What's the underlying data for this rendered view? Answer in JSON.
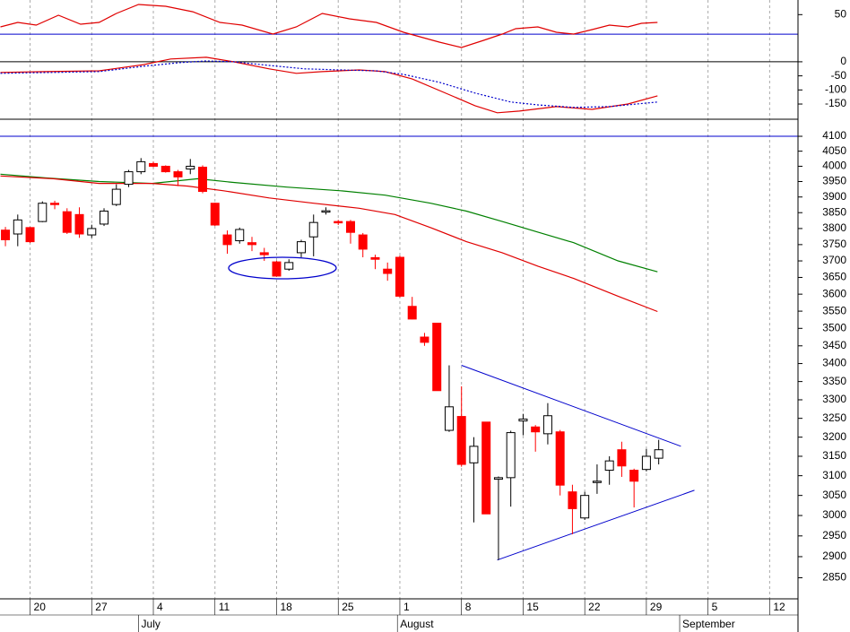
{
  "chart_data": [
    {
      "type": "line",
      "xlim": [
        -0.44,
        64.3
      ],
      "ylim": [
        8,
        65
      ],
      "yticks": [
        50
      ],
      "reference_line": {
        "value": 30,
        "color": "#0000cc"
      },
      "series": [
        {
          "color": "#e00000",
          "x": [
            -0.4,
            1.0,
            2.5,
            4.3,
            6.1,
            7.6,
            9.0,
            10.8,
            13.0,
            15.2,
            17.4,
            19.2,
            21.7,
            23.6,
            25.7,
            27.9,
            30.1,
            32.3,
            35.2,
            37.0,
            38.8,
            40.3,
            41.4,
            43.2,
            44.7,
            46.1,
            47.6,
            49.0,
            50.5,
            51.6,
            52.9
          ],
          "values": [
            37.4,
            42.0,
            39.3,
            49.4,
            40.2,
            42.0,
            51.2,
            60.4,
            58.6,
            53.0,
            42.0,
            39.3,
            30.1,
            37.4,
            51.2,
            45.7,
            42.0,
            31.9,
            21.8,
            16.3,
            23.6,
            30.1,
            35.6,
            37.4,
            31.9,
            30.1,
            34.7,
            39.3,
            37.4,
            41.1,
            42.0
          ]
        }
      ]
    },
    {
      "type": "line",
      "xlim": [
        -0.44,
        64.3
      ],
      "ylim": [
        -204,
        22
      ],
      "yticks": [
        0,
        -50,
        -100,
        -150
      ],
      "reference_line": {
        "value": 0,
        "color": "#000000"
      },
      "series": [
        {
          "color": "#e00000",
          "x": [
            -0.4,
            3.2,
            7.6,
            11.2,
            13.4,
            16.3,
            18.5,
            21.4,
            23.6,
            25.7,
            28.7,
            30.8,
            33.0,
            35.9,
            38.1,
            39.9,
            41.7,
            44.7,
            47.6,
            50.5,
            52.9
          ],
          "values": [
            -38,
            -35,
            -32,
            -10,
            10,
            16,
            0,
            -25,
            -41,
            -35,
            -29,
            -35,
            -61,
            -115,
            -156,
            -181,
            -175,
            -159,
            -169,
            -150,
            -121
          ]
        },
        {
          "color": "#0000cc",
          "style": "dotted",
          "x": [
            -0.4,
            3.9,
            7.6,
            11.2,
            14.1,
            16.3,
            18.5,
            21.4,
            24.3,
            27.2,
            30.1,
            32.3,
            35.2,
            38.1,
            41.0,
            43.2,
            46.1,
            49.0,
            52.9
          ],
          "values": [
            -41,
            -38,
            -35,
            -16,
            -3,
            3,
            0,
            -13,
            -25,
            -29,
            -32,
            -45,
            -73,
            -111,
            -143,
            -153,
            -162,
            -159,
            -143
          ]
        }
      ]
    },
    {
      "type": "candlestick",
      "xlim": [
        -0.44,
        64.3
      ],
      "ylim": [
        2801,
        4158
      ],
      "log_scale": true,
      "yticks": [
        4100,
        4050,
        4000,
        3950,
        3900,
        3850,
        3800,
        3750,
        3700,
        3650,
        3600,
        3550,
        3500,
        3450,
        3400,
        3350,
        3300,
        3250,
        3200,
        3150,
        3100,
        3050,
        3000,
        2950,
        2900,
        2850
      ],
      "reference_line": {
        "value": 4100,
        "color": "#0000cc"
      },
      "up_color": "#ffffff",
      "down_color": "#ff0000",
      "open": [
        3795,
        3783,
        3803,
        3822,
        3880,
        3853,
        3844,
        3780,
        3814,
        3876,
        3941,
        3982,
        4009,
        4000,
        3982,
        3991,
        3997,
        3880,
        3780,
        3762,
        3756,
        3725,
        3697,
        3675,
        3725,
        3774,
        3853,
        3822,
        3822,
        3780,
        3710,
        3675,
        3711,
        3564,
        3475,
        3515,
        3218,
        3255,
        3133,
        3240,
        3091,
        3095,
        3243,
        3227,
        3209,
        3214,
        3059,
        2994,
        3083,
        3114,
        3167,
        3114,
        3116,
        3145
      ],
      "high": [
        3805,
        3844,
        3805,
        3886,
        3888,
        3864,
        3867,
        3812,
        3864,
        3941,
        3988,
        4027,
        4015,
        4003,
        3988,
        4024,
        4003,
        3882,
        3794,
        3803,
        3774,
        3740,
        3700,
        3705,
        3765,
        3844,
        3867,
        3827,
        3827,
        3786,
        3719,
        3695,
        3716,
        3592,
        3487,
        3515,
        3395,
        3337,
        3200,
        3240,
        3098,
        3217,
        3262,
        3232,
        3291,
        3219,
        3077,
        3059,
        3129,
        3150,
        3188,
        3118,
        3169,
        3193
      ],
      "low": [
        3745,
        3745,
        3755,
        3820,
        3861,
        3783,
        3771,
        3771,
        3808,
        3871,
        3932,
        3974,
        3997,
        3979,
        3935,
        3974,
        3912,
        3808,
        3722,
        3753,
        3730,
        3700,
        3652,
        3670,
        3711,
        3714,
        3844,
        3811,
        3753,
        3711,
        3675,
        3640,
        3590,
        3526,
        3450,
        3325,
        3214,
        3123,
        2983,
        3004,
        2892,
        3022,
        3205,
        3162,
        3181,
        3050,
        2954,
        2989,
        3054,
        3077,
        3097,
        3020,
        3111,
        3129
      ],
      "close": [
        3765,
        3827,
        3759,
        3880,
        3876,
        3788,
        3783,
        3800,
        3855,
        3925,
        3982,
        4015,
        4000,
        3982,
        3965,
        4000,
        3918,
        3811,
        3750,
        3797,
        3750,
        3719,
        3654,
        3695,
        3759,
        3819,
        3856,
        3818,
        3788,
        3736,
        3705,
        3662,
        3594,
        3527,
        3460,
        3325,
        3281,
        3129,
        3176,
        3004,
        3095,
        3212,
        3248,
        3214,
        3257,
        3076,
        3017,
        3050,
        3086,
        3138,
        3125,
        3086,
        3150,
        3167
      ],
      "series": [
        {
          "color": "#008000",
          "x": [
            -0.4,
            3.2,
            7.6,
            11.9,
            15.6,
            18.5,
            22.8,
            27.2,
            30.8,
            34.5,
            37.4,
            40.3,
            43.2,
            46.1,
            49.7,
            52.9
          ],
          "values": [
            3974,
            3962,
            3950,
            3944,
            3959,
            3947,
            3932,
            3920,
            3906,
            3880,
            3855,
            3822,
            3789,
            3756,
            3700,
            3667
          ]
        },
        {
          "color": "#e00000",
          "x": [
            -0.4,
            3.9,
            7.6,
            11.9,
            14.8,
            17.7,
            21.4,
            25.0,
            28.7,
            31.6,
            34.5,
            37.4,
            40.3,
            43.2,
            46.1,
            49.7,
            52.9
          ],
          "values": [
            3968,
            3959,
            3944,
            3944,
            3935,
            3920,
            3897,
            3880,
            3864,
            3844,
            3803,
            3759,
            3725,
            3684,
            3647,
            3594,
            3549
          ]
        }
      ],
      "trendlines": [
        {
          "color": "#0000cc",
          "x": [
            37.0,
            54.8
          ],
          "values": [
            3395,
            3176
          ]
        },
        {
          "color": "#0000cc",
          "x": [
            39.9,
            55.9
          ],
          "values": [
            2892,
            3063
          ]
        }
      ],
      "xticks": [
        {
          "value": 2,
          "label": "20"
        },
        {
          "value": 7,
          "label": "27"
        },
        {
          "value": 12,
          "label": "4"
        },
        {
          "value": 17,
          "label": "11"
        },
        {
          "value": 22,
          "label": "18"
        },
        {
          "value": 27,
          "label": "25"
        },
        {
          "value": 32,
          "label": "1"
        },
        {
          "value": 37,
          "label": "8"
        },
        {
          "value": 42,
          "label": "15"
        },
        {
          "value": 47,
          "label": "22"
        },
        {
          "value": 52,
          "label": "29"
        },
        {
          "value": 57,
          "label": "5"
        },
        {
          "value": 62,
          "label": "12"
        }
      ],
      "month_ticks": [
        {
          "value": 10.8,
          "label": "July"
        },
        {
          "value": 31.8,
          "label": "August"
        },
        {
          "value": 54.7,
          "label": "September"
        }
      ]
    }
  ]
}
